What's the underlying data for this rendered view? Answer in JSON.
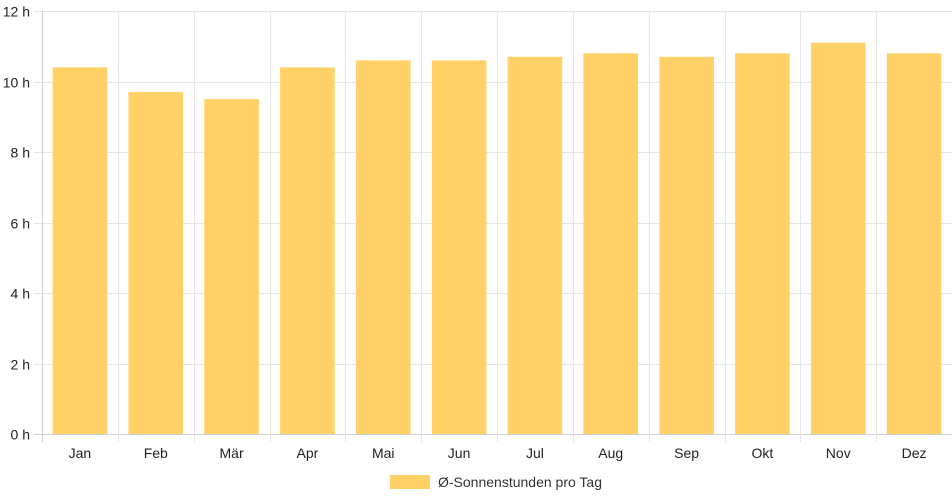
{
  "chart_data": {
    "type": "bar",
    "categories": [
      "Jan",
      "Feb",
      "Mär",
      "Apr",
      "Mai",
      "Jun",
      "Jul",
      "Aug",
      "Sep",
      "Okt",
      "Nov",
      "Dez"
    ],
    "series": [
      {
        "name": "Ø-Sonnenstunden pro Tag",
        "values": [
          10.4,
          9.7,
          9.5,
          10.4,
          10.6,
          10.6,
          10.7,
          10.8,
          10.7,
          10.8,
          11.1,
          10.8
        ]
      }
    ],
    "y_ticks": [
      "0 h",
      "2 h",
      "4 h",
      "6 h",
      "8 h",
      "10 h",
      "12 h"
    ],
    "ylim": [
      0,
      12
    ],
    "y_tick_step": 2,
    "grid": true,
    "legend_position": "bottom",
    "bar_color": "#FFD166",
    "grid_color": "#E6E6E6",
    "axis_color": "#D0D0D0"
  }
}
